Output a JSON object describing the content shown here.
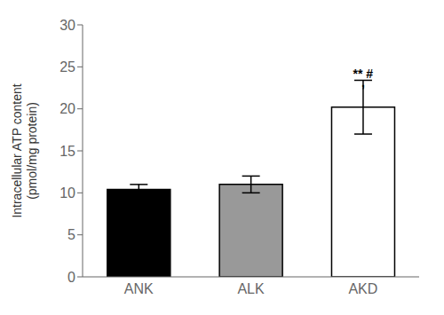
{
  "chart_data": {
    "type": "bar",
    "categories": [
      "ANK",
      "ALK",
      "AKD"
    ],
    "values": [
      10.4,
      11.0,
      20.2
    ],
    "errors": [
      0.6,
      1.0,
      3.2
    ],
    "colors": [
      "#000000",
      "#999999",
      "#ffffff"
    ],
    "ylabel": "Intracellular ATP content\n(pmol/mg protein)",
    "ylim": [
      0,
      30
    ],
    "yticks": [
      0,
      5,
      10,
      15,
      20,
      25,
      30
    ],
    "grid": false,
    "annotations": [
      {
        "text": "** #",
        "x": "AKD",
        "y": 23.4
      },
      {
        "text": ",",
        "x": "AKD",
        "y": 22.4
      }
    ]
  }
}
